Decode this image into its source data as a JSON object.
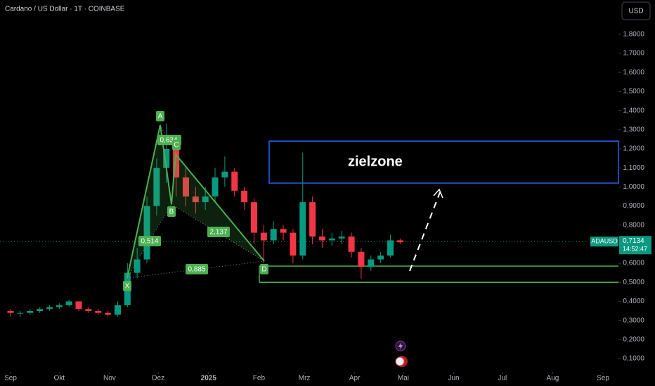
{
  "chart_data": {
    "type": "candlestick",
    "title": "Cardano / US Dollar · 1T · COINBASE",
    "currency_button": "USD",
    "x": [
      0,
      6,
      12,
      18,
      24,
      30,
      36,
      42,
      48,
      54,
      60,
      66,
      72,
      78,
      84,
      90,
      96,
      102,
      108,
      114,
      120,
      126,
      132,
      138,
      144,
      150,
      156,
      162,
      168,
      174,
      180,
      186,
      192,
      198,
      204,
      210,
      216,
      222,
      228,
      234,
      240
    ],
    "open": [
      0.35,
      0.34,
      0.34,
      0.35,
      0.36,
      0.37,
      0.38,
      0.4,
      0.36,
      0.35,
      0.34,
      0.33,
      0.38,
      0.55,
      0.62,
      0.9,
      1.1,
      1.2,
      1.05,
      0.95,
      0.92,
      0.95,
      1.05,
      1.08,
      0.98,
      0.92,
      0.76,
      0.72,
      0.78,
      0.76,
      0.64,
      0.92,
      0.74,
      0.72,
      0.73,
      0.74,
      0.66,
      0.58,
      0.62,
      0.64,
      0.72
    ],
    "high": [
      0.36,
      0.35,
      0.36,
      0.37,
      0.38,
      0.39,
      0.41,
      0.4,
      0.37,
      0.36,
      0.35,
      0.4,
      0.6,
      0.68,
      0.95,
      1.15,
      1.33,
      1.22,
      1.1,
      1.0,
      1.0,
      1.1,
      1.16,
      1.1,
      1.0,
      0.94,
      0.8,
      0.82,
      0.8,
      0.78,
      1.18,
      0.95,
      0.78,
      0.76,
      0.77,
      0.76,
      0.68,
      0.64,
      0.66,
      0.75,
      0.73
    ],
    "low": [
      0.32,
      0.32,
      0.33,
      0.34,
      0.35,
      0.36,
      0.37,
      0.35,
      0.34,
      0.33,
      0.32,
      0.32,
      0.37,
      0.52,
      0.6,
      0.85,
      1.02,
      0.95,
      0.9,
      0.86,
      0.88,
      0.92,
      1.0,
      0.95,
      0.88,
      0.7,
      0.6,
      0.7,
      0.72,
      0.6,
      0.62,
      0.7,
      0.68,
      0.69,
      0.7,
      0.63,
      0.52,
      0.56,
      0.6,
      0.63,
      0.7
    ],
    "close": [
      0.34,
      0.34,
      0.35,
      0.36,
      0.37,
      0.38,
      0.4,
      0.36,
      0.35,
      0.34,
      0.33,
      0.38,
      0.55,
      0.62,
      0.9,
      1.1,
      1.2,
      1.05,
      0.95,
      0.92,
      0.95,
      1.05,
      1.08,
      0.98,
      0.92,
      0.76,
      0.72,
      0.78,
      0.76,
      0.64,
      0.92,
      0.74,
      0.72,
      0.73,
      0.74,
      0.66,
      0.58,
      0.62,
      0.64,
      0.72,
      0.71
    ],
    "up_color": "#089981",
    "down_color": "#f23645",
    "xlim": [
      -6.5,
      374.5
    ],
    "xticks": [
      {
        "value": 0,
        "label": "Sep"
      },
      {
        "value": 30,
        "label": "Okt"
      },
      {
        "value": 61,
        "label": "Nov"
      },
      {
        "value": 91,
        "label": "Dez"
      },
      {
        "value": 122,
        "label": "2025"
      },
      {
        "value": 153,
        "label": "Feb"
      },
      {
        "value": 181,
        "label": "Mrz"
      },
      {
        "value": 212,
        "label": "Apr"
      },
      {
        "value": 242,
        "label": "Mai"
      },
      {
        "value": 273,
        "label": "Jun"
      },
      {
        "value": 303,
        "label": "Jul"
      },
      {
        "value": 334,
        "label": "Aug"
      },
      {
        "value": 365,
        "label": "Sep"
      }
    ],
    "ylim": [
      0.03,
      1.98
    ],
    "yticks": [
      {
        "value": 0.1,
        "label": "0,1000"
      },
      {
        "value": 0.2,
        "label": "0,2000"
      },
      {
        "value": 0.3,
        "label": "0,3000"
      },
      {
        "value": 0.4,
        "label": "0,4000"
      },
      {
        "value": 0.5,
        "label": "0,5000"
      },
      {
        "value": 0.6,
        "label": "0,6000"
      },
      {
        "value": 0.7,
        "label": "0,7000"
      },
      {
        "value": 0.8,
        "label": "0,8000"
      },
      {
        "value": 0.9,
        "label": "0,9000"
      },
      {
        "value": 1.0,
        "label": "1,0000"
      },
      {
        "value": 1.1,
        "label": "1,1000"
      },
      {
        "value": 1.2,
        "label": "1,2000"
      },
      {
        "value": 1.3,
        "label": "1,3000"
      },
      {
        "value": 1.4,
        "label": "1,4000"
      },
      {
        "value": 1.5,
        "label": "1,5000"
      },
      {
        "value": 1.6,
        "label": "1,6000"
      },
      {
        "value": 1.7,
        "label": "1,7000"
      },
      {
        "value": 1.8,
        "label": "1,8000"
      }
    ],
    "symbol_label": "ADAUSD",
    "last_price": {
      "value": 0.7134,
      "label": "0,7134"
    },
    "countdown": "14:52:47",
    "target_zone": {
      "label": "zielzone",
      "low": 1.02,
      "high": 1.24,
      "color": "#2962ff"
    },
    "support_zone": {
      "low": 0.5,
      "high": 0.585,
      "color": "#4caf50"
    },
    "pattern": {
      "points": [
        "X",
        "A",
        "B",
        "C",
        "D"
      ],
      "ratios": [
        "0,634",
        "0,514",
        "2,137",
        "0,885"
      ]
    }
  }
}
